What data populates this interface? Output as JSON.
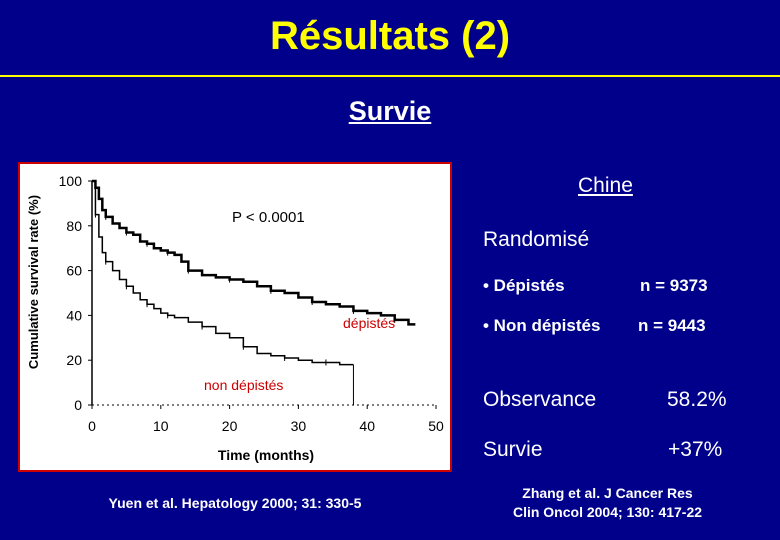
{
  "slide": {
    "title": "Résultats (2)",
    "subtitle": "Survie"
  },
  "right_panel": {
    "region": "Chine",
    "design": "Randomisé",
    "bullets": [
      {
        "label": "• Dépistés",
        "value": "n = 9373"
      },
      {
        "label": "• Non dépistés",
        "value": "n = 9443"
      }
    ],
    "stats": [
      {
        "label": "Observance",
        "value": "58.2%"
      },
      {
        "label": "Survie",
        "value": "+37%"
      }
    ]
  },
  "citations": {
    "left": "Yuen et al. Hepatology 2000; 31: 330-5",
    "right_line1": "Zhang et al. J Cancer Res",
    "right_line2": "Clin Oncol 2004; 130: 417-22"
  },
  "colors": {
    "background": "#00008B",
    "title": "#FFFF00",
    "text": "#FFFFFF",
    "panel_border": "#CC0000",
    "curve": "#000000"
  },
  "chart_data": {
    "type": "line",
    "step": true,
    "title": "",
    "xlabel": "Time (months)",
    "ylabel": "Cumulative survival rate (%)",
    "xlim": [
      0,
      50
    ],
    "ylim": [
      0,
      100
    ],
    "xticks": [
      "0",
      "10",
      "20",
      "30",
      "40",
      "50"
    ],
    "yticks": [
      "0",
      "20",
      "40",
      "60",
      "80",
      "100"
    ],
    "grid": false,
    "annotation": "P < 0.0001",
    "series": [
      {
        "name": "dépistés",
        "x": [
          0,
          0.5,
          1,
          1.5,
          2,
          3,
          4,
          5,
          6,
          7,
          8,
          9,
          10,
          11,
          12,
          13,
          14,
          16,
          18,
          20,
          22,
          24,
          26,
          28,
          30,
          32,
          34,
          36,
          38,
          40,
          42,
          44,
          46,
          47
        ],
        "y": [
          100,
          97,
          92,
          87,
          84,
          81,
          79,
          77,
          76,
          73,
          72,
          70,
          69,
          68,
          67,
          64,
          60,
          58,
          57,
          56,
          55,
          53,
          51,
          50,
          48,
          46,
          45,
          44,
          42,
          41,
          40,
          38,
          36,
          36
        ]
      },
      {
        "name": "non dépistés",
        "x": [
          0,
          0.5,
          1,
          1.5,
          2,
          3,
          4,
          5,
          6,
          7,
          8,
          9,
          10,
          11,
          12,
          14,
          16,
          18,
          20,
          22,
          24,
          26,
          28,
          30,
          32,
          34,
          36,
          38
        ],
        "y": [
          100,
          85,
          75,
          68,
          64,
          60,
          56,
          53,
          50,
          47,
          45,
          43,
          41,
          40,
          39,
          37,
          35,
          32,
          30,
          26,
          23,
          22,
          21,
          20,
          19,
          19,
          18,
          18
        ]
      }
    ]
  }
}
